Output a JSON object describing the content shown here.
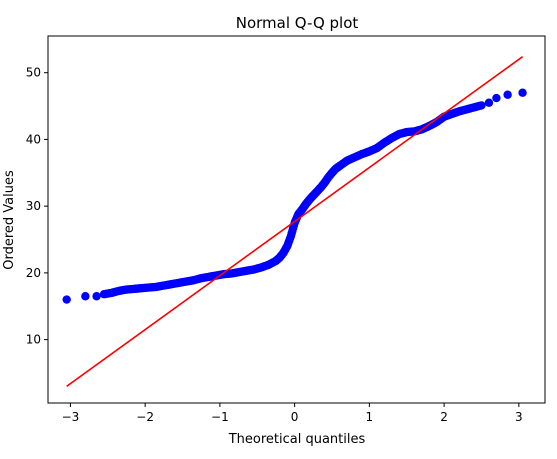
{
  "chart_data": {
    "type": "scatter",
    "title": "Normal Q-Q plot",
    "xlabel": "Theoretical quantiles",
    "ylabel": "Ordered Values",
    "xlim": [
      -3.3,
      3.35
    ],
    "ylim": [
      0.5,
      55.5
    ],
    "xticks": [
      -3,
      -2,
      -1,
      0,
      1,
      2,
      3
    ],
    "yticks": [
      10,
      20,
      30,
      40,
      50
    ],
    "grid": false,
    "points_color": "#0000ff",
    "line_color": "#ff0000",
    "series": [
      {
        "kind": "points",
        "x": [
          -3.05,
          -2.8,
          -2.65,
          -2.55,
          -2.45,
          -2.35,
          -2.25,
          -2.15,
          -2.05,
          -1.95,
          -1.85,
          -1.75,
          -1.65,
          -1.55,
          -1.45,
          -1.35,
          -1.25,
          -1.15,
          -1.05,
          -0.95,
          -0.85,
          -0.75,
          -0.65,
          -0.55,
          -0.45,
          -0.35,
          -0.25,
          -0.2,
          -0.15,
          -0.1,
          -0.05,
          0.0,
          0.05,
          0.1,
          0.15,
          0.2,
          0.25,
          0.3,
          0.35,
          0.4,
          0.45,
          0.5,
          0.55,
          0.6,
          0.7,
          0.8,
          0.9,
          1.0,
          1.1,
          1.2,
          1.3,
          1.4,
          1.5,
          1.6,
          1.7,
          1.8,
          1.9,
          2.0,
          2.1,
          2.2,
          2.3,
          2.4,
          2.5,
          2.6,
          2.7,
          2.85,
          3.05
        ],
        "y": [
          16.0,
          16.5,
          16.5,
          16.8,
          17.0,
          17.3,
          17.5,
          17.6,
          17.7,
          17.8,
          17.9,
          18.1,
          18.3,
          18.5,
          18.7,
          18.9,
          19.2,
          19.4,
          19.6,
          19.8,
          19.9,
          20.1,
          20.3,
          20.5,
          20.8,
          21.2,
          21.8,
          22.3,
          23.0,
          24.0,
          25.5,
          27.5,
          28.8,
          29.5,
          30.3,
          31.0,
          31.6,
          32.2,
          32.8,
          33.5,
          34.3,
          35.0,
          35.6,
          36.0,
          36.8,
          37.3,
          37.8,
          38.2,
          38.7,
          39.5,
          40.2,
          40.8,
          41.1,
          41.2,
          41.5,
          42.0,
          42.6,
          43.4,
          43.8,
          44.2,
          44.5,
          44.8,
          45.1,
          45.5,
          46.2,
          46.7,
          47.0
        ]
      },
      {
        "kind": "line",
        "x": [
          -3.05,
          3.05
        ],
        "y": [
          3.0,
          52.4
        ]
      }
    ]
  }
}
